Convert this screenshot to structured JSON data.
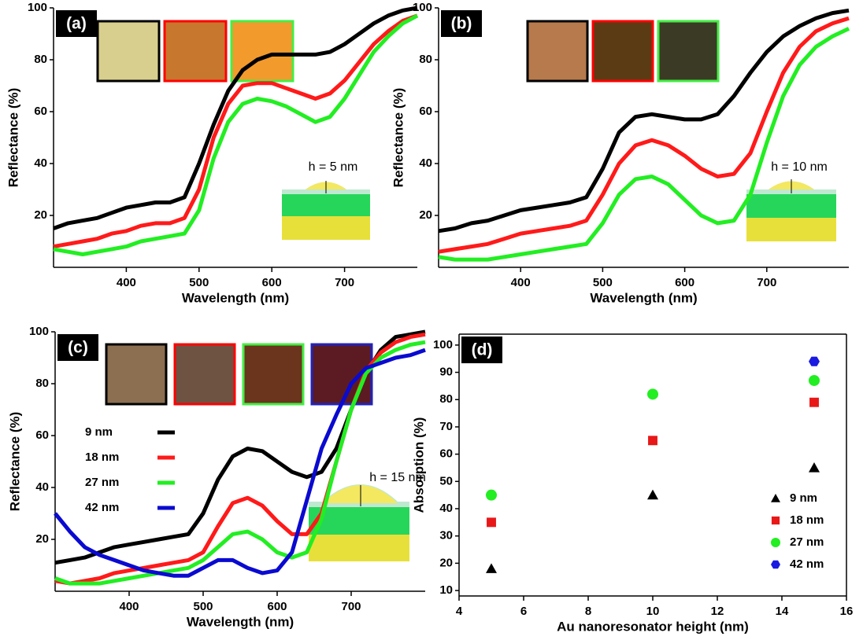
{
  "chart_data": [
    {
      "type": "line",
      "label": "(a)",
      "xlabel": "Wavelength (nm)",
      "ylabel": "Reflectance (%)",
      "annotation": "h = 5 nm",
      "x": [
        300,
        320,
        340,
        360,
        380,
        400,
        420,
        440,
        460,
        480,
        500,
        520,
        540,
        560,
        580,
        600,
        620,
        640,
        660,
        680,
        700,
        720,
        740,
        760,
        780,
        800
      ],
      "xlim": [
        300,
        800
      ],
      "xticks": [
        400,
        500,
        600,
        700
      ],
      "ylim": [
        0,
        100
      ],
      "yticks": [
        20,
        40,
        60,
        80,
        100
      ],
      "series": [
        {
          "color": "#000000",
          "values": [
            15,
            17,
            18,
            19,
            21,
            23,
            24,
            25,
            25,
            27,
            40,
            55,
            68,
            76,
            80,
            82,
            82,
            82,
            82,
            83,
            86,
            90,
            94,
            97,
            99,
            100
          ]
        },
        {
          "color": "#ff1a1a",
          "values": [
            8,
            9,
            10,
            11,
            13,
            14,
            16,
            17,
            17,
            19,
            30,
            50,
            63,
            70,
            71,
            71,
            69,
            67,
            65,
            67,
            72,
            79,
            86,
            91,
            95,
            97
          ]
        },
        {
          "color": "#22ee22",
          "values": [
            7,
            6,
            5,
            6,
            7,
            8,
            10,
            11,
            12,
            13,
            22,
            42,
            56,
            63,
            65,
            64,
            62,
            59,
            56,
            58,
            65,
            74,
            83,
            89,
            94,
            97
          ]
        }
      ]
    },
    {
      "type": "line",
      "label": "(b)",
      "xlabel": "Wavelength (nm)",
      "ylabel": "Reflectance (%)",
      "annotation": "h = 10 nm",
      "x": [
        300,
        320,
        340,
        360,
        380,
        400,
        420,
        440,
        460,
        480,
        500,
        520,
        540,
        560,
        580,
        600,
        620,
        640,
        660,
        680,
        700,
        720,
        740,
        760,
        780,
        800
      ],
      "xlim": [
        300,
        800
      ],
      "xticks": [
        400,
        500,
        600,
        700
      ],
      "ylim": [
        0,
        100
      ],
      "yticks": [
        20,
        40,
        60,
        80,
        100
      ],
      "series": [
        {
          "color": "#000000",
          "values": [
            14,
            15,
            17,
            18,
            20,
            22,
            23,
            24,
            25,
            27,
            38,
            52,
            58,
            59,
            58,
            57,
            57,
            59,
            66,
            75,
            83,
            89,
            93,
            96,
            98,
            99
          ]
        },
        {
          "color": "#ff1a1a",
          "values": [
            6,
            7,
            8,
            9,
            11,
            13,
            14,
            15,
            16,
            18,
            28,
            40,
            47,
            49,
            47,
            43,
            38,
            35,
            36,
            44,
            60,
            75,
            85,
            91,
            94,
            96
          ]
        },
        {
          "color": "#22ee22",
          "values": [
            4,
            3,
            3,
            3,
            4,
            5,
            6,
            7,
            8,
            9,
            17,
            28,
            34,
            35,
            32,
            26,
            20,
            17,
            18,
            28,
            48,
            66,
            78,
            85,
            89,
            92
          ]
        }
      ]
    },
    {
      "type": "line",
      "label": "(c)",
      "xlabel": "Wavelength (nm)",
      "ylabel": "Reflectance (%)",
      "annotation": "h = 15 nm",
      "legend": "center-left",
      "x": [
        300,
        320,
        340,
        360,
        380,
        400,
        420,
        440,
        460,
        480,
        500,
        520,
        540,
        560,
        580,
        600,
        620,
        640,
        660,
        680,
        700,
        720,
        740,
        760,
        780,
        800
      ],
      "xlim": [
        300,
        800
      ],
      "xticks": [
        400,
        500,
        600,
        700
      ],
      "ylim": [
        0,
        100
      ],
      "yticks": [
        20,
        40,
        60,
        80,
        100
      ],
      "series": [
        {
          "name": "9 nm",
          "color": "#000000",
          "values": [
            11,
            12,
            13,
            15,
            17,
            18,
            19,
            20,
            21,
            22,
            30,
            43,
            52,
            55,
            54,
            50,
            46,
            44,
            46,
            55,
            70,
            84,
            93,
            98,
            99,
            100
          ]
        },
        {
          "name": "18 nm",
          "color": "#ff1a1a",
          "values": [
            4,
            3,
            4,
            5,
            7,
            8,
            9,
            10,
            11,
            12,
            15,
            25,
            34,
            36,
            33,
            27,
            22,
            22,
            30,
            50,
            70,
            85,
            92,
            96,
            98,
            99
          ]
        },
        {
          "name": "27 nm",
          "color": "#22ee22",
          "values": [
            5,
            3,
            3,
            3,
            4,
            5,
            6,
            7,
            8,
            9,
            12,
            17,
            22,
            23,
            20,
            15,
            13,
            15,
            28,
            50,
            70,
            84,
            90,
            93,
            95,
            96
          ]
        },
        {
          "name": "42 nm",
          "color": "#0a0ad0",
          "values": [
            30,
            23,
            17,
            14,
            12,
            10,
            8,
            7,
            6,
            6,
            9,
            12,
            12,
            9,
            7,
            8,
            15,
            35,
            55,
            68,
            80,
            86,
            88,
            90,
            91,
            93
          ]
        }
      ]
    },
    {
      "type": "scatter",
      "label": "(d)",
      "xlabel": "Au nanoresonator height (nm)",
      "ylabel": "Absorption (%)",
      "legend": "lower-right",
      "xlim": [
        4,
        16
      ],
      "xticks": [
        4,
        6,
        8,
        10,
        12,
        14,
        16
      ],
      "ylim": [
        8,
        104
      ],
      "yticks": [
        10,
        20,
        30,
        40,
        50,
        60,
        70,
        80,
        90,
        100
      ],
      "series": [
        {
          "name": "9 nm",
          "color": "#000000",
          "marker": "triangle",
          "x": [
            5,
            10,
            15
          ],
          "values": [
            18,
            45,
            55
          ]
        },
        {
          "name": "18 nm",
          "color": "#e81818",
          "marker": "square",
          "x": [
            5,
            10,
            15
          ],
          "values": [
            35,
            65,
            79
          ]
        },
        {
          "name": "27 nm",
          "color": "#22ee22",
          "marker": "circle",
          "x": [
            5,
            10,
            15
          ],
          "values": [
            45,
            82,
            87
          ]
        },
        {
          "name": "42 nm",
          "color": "#1a1ae0",
          "marker": "hexagon",
          "x": [
            15
          ],
          "values": [
            94
          ]
        }
      ]
    }
  ]
}
